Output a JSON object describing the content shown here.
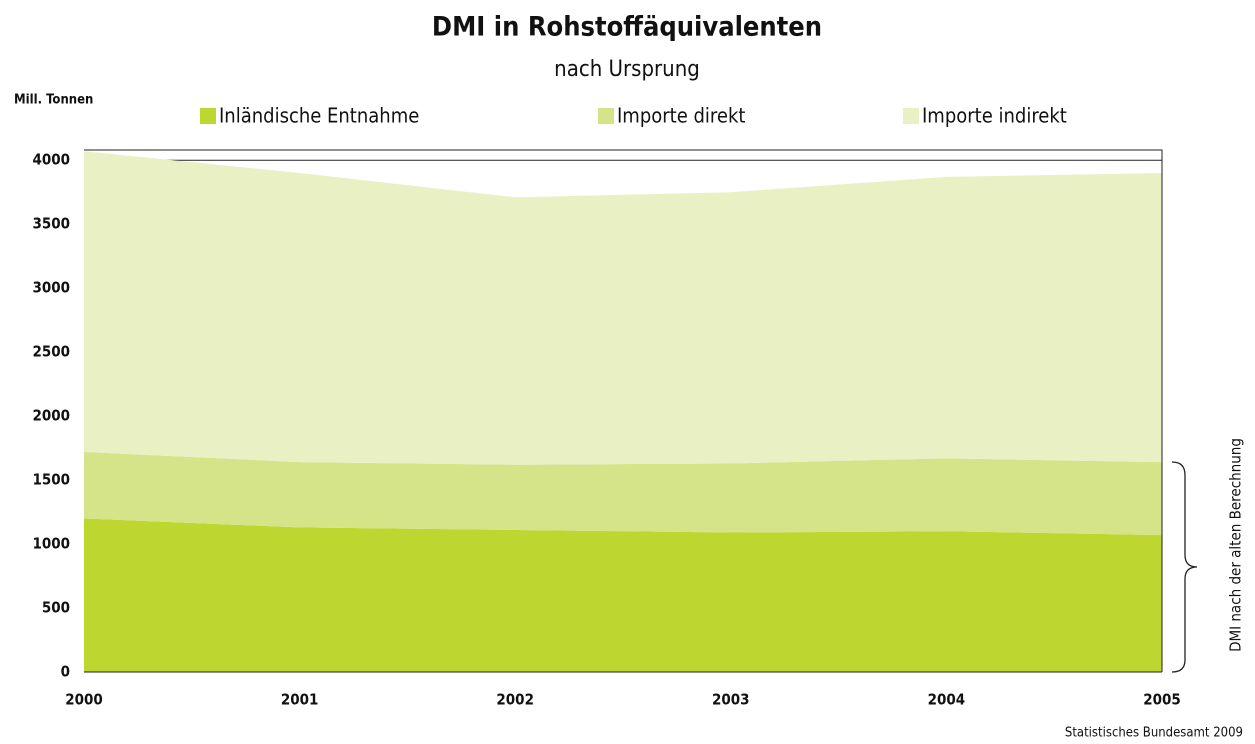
{
  "chart_data": {
    "type": "stacked_area",
    "title": "DMI in Rohstoffäquivalenten",
    "subtitle": "nach Ursprung",
    "y_label": "Mill. Tonnen",
    "annotation": "DMI nach der alten Berechnung",
    "source": "Statistisches Bundesamt 2009",
    "categories": [
      "2000",
      "2001",
      "2002",
      "2003",
      "2004",
      "2005"
    ],
    "series": [
      {
        "name": "Inländische Entnahme",
        "color": "#bdd630",
        "values": [
          1200,
          1130,
          1110,
          1090,
          1100,
          1070
        ]
      },
      {
        "name": "Importe direkt",
        "color": "#d5e389",
        "values": [
          520,
          510,
          510,
          540,
          570,
          570
        ]
      },
      {
        "name": "Importe indirekt",
        "color": "#e8f0c4",
        "values": [
          2350,
          2260,
          2090,
          2120,
          2200,
          2260
        ]
      }
    ],
    "ylim": [
      0,
      4080
    ],
    "yticks": [
      0,
      500,
      1000,
      1500,
      2000,
      2500,
      3000,
      3500,
      4000
    ],
    "grid": true
  }
}
